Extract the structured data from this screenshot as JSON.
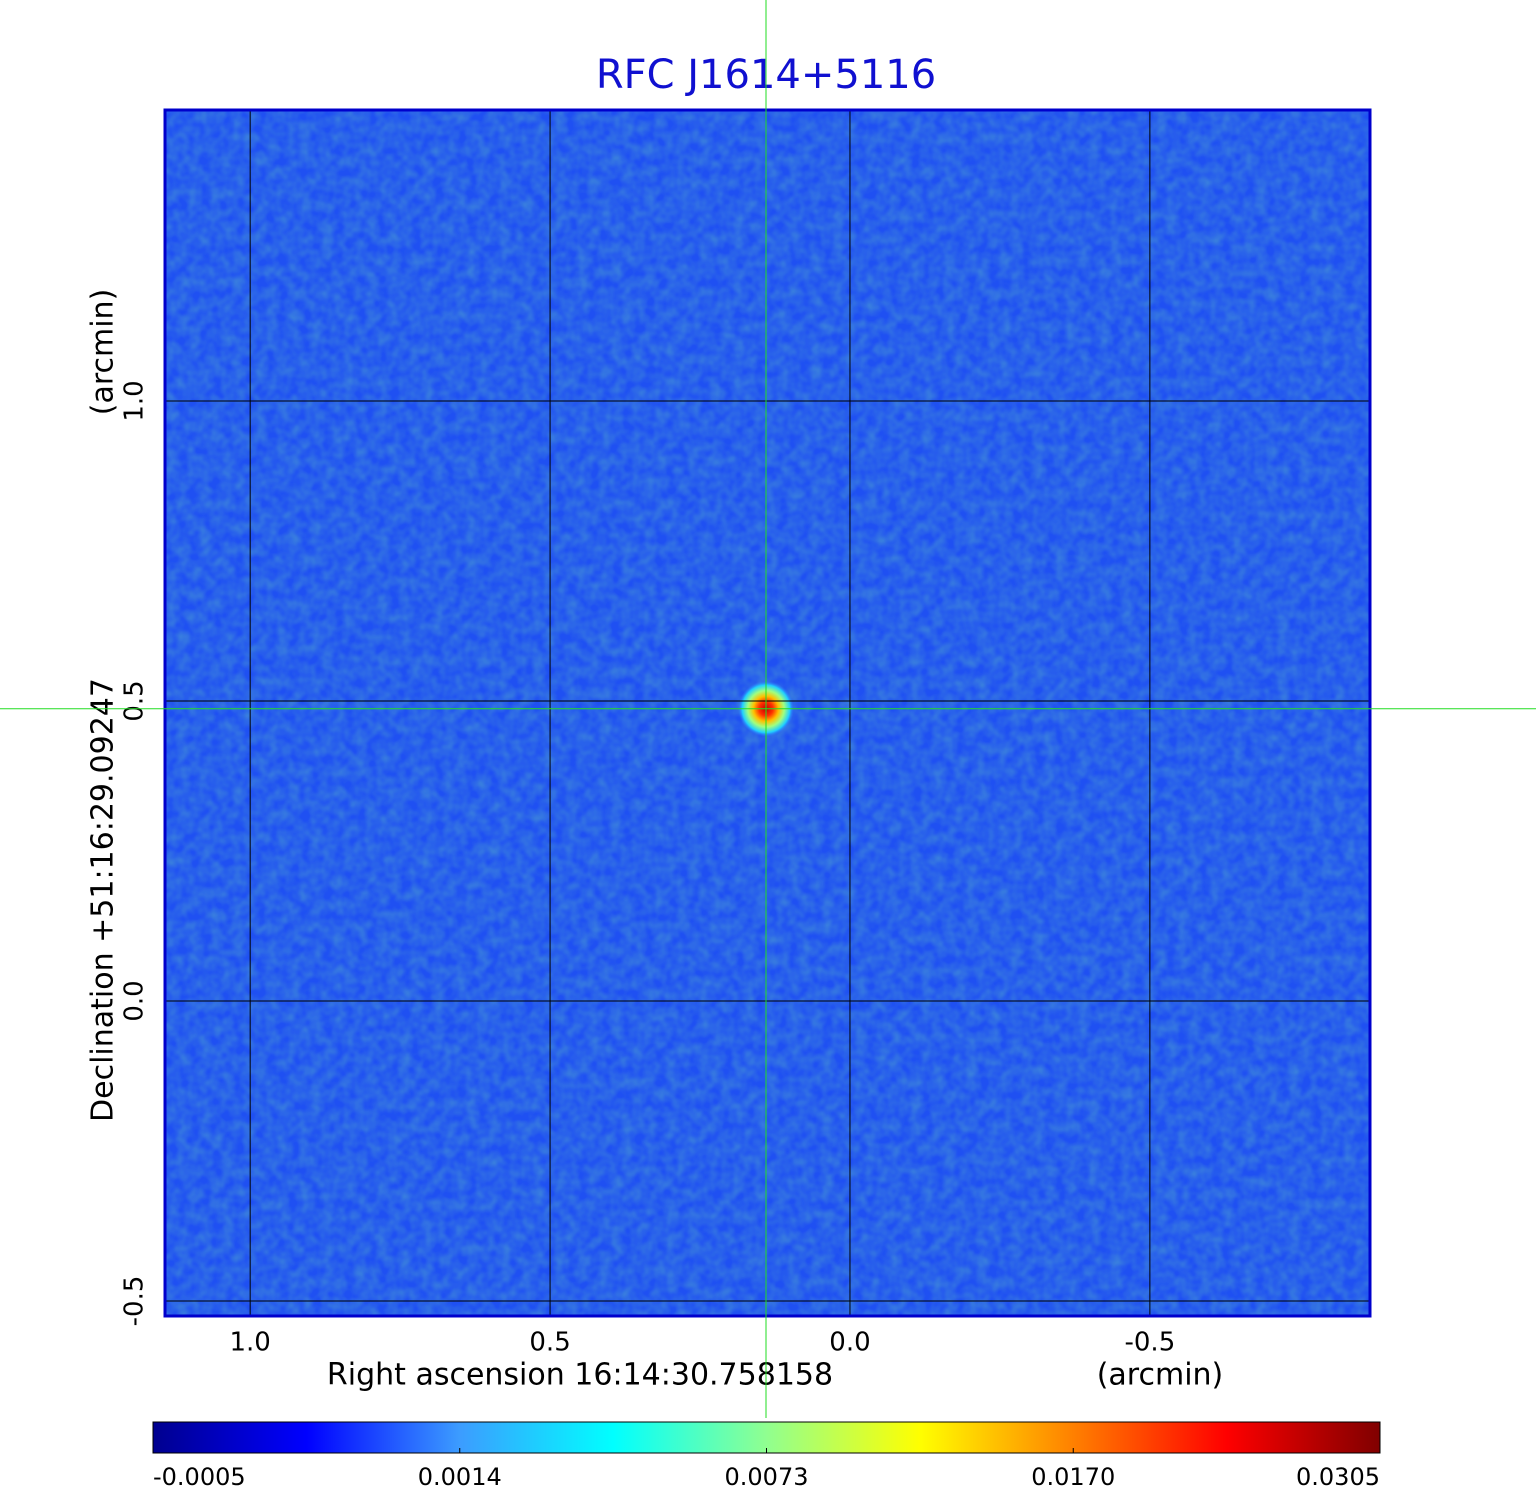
{
  "chart_data": {
    "type": "image",
    "title": "RFC J1614+5116",
    "x_label": "Right ascension  16:14:30.758158",
    "x_unit": "(arcmin)",
    "y_label": "Declination  +51:16:29.09247",
    "y_unit": "(arcmin)",
    "xlim": [
      1.142,
      -0.867
    ],
    "xticks": [
      {
        "value": 1,
        "label": "1.0"
      },
      0.5,
      {
        "value": 0,
        "label": "0.0"
      },
      -0.5
    ],
    "ylim": [
      -0.525,
      1.485
    ],
    "yticks": [
      -0.5,
      {
        "value": 0,
        "label": "0.0"
      },
      0.5,
      {
        "value": 1,
        "label": "1.0"
      }
    ],
    "grid": true,
    "background_color": "#1f50f2",
    "source": {
      "x": 0.14,
      "y": 0.487,
      "peak": 0.0305
    },
    "crosshair": {
      "x": 0.14,
      "y": 0.487,
      "color": "#22dd22"
    },
    "colorbar_ticks": [
      -0.0005,
      0.0014,
      0.0073,
      {
        "value": 0.017,
        "label": "0.0170"
      },
      0.0305
    ],
    "colormap": [
      "#00008f",
      "#0000ff",
      "#3c9cff",
      "#00ffff",
      "#90ff90",
      "#ffff00",
      "#ff8000",
      "#ff0000",
      "#800000"
    ]
  }
}
